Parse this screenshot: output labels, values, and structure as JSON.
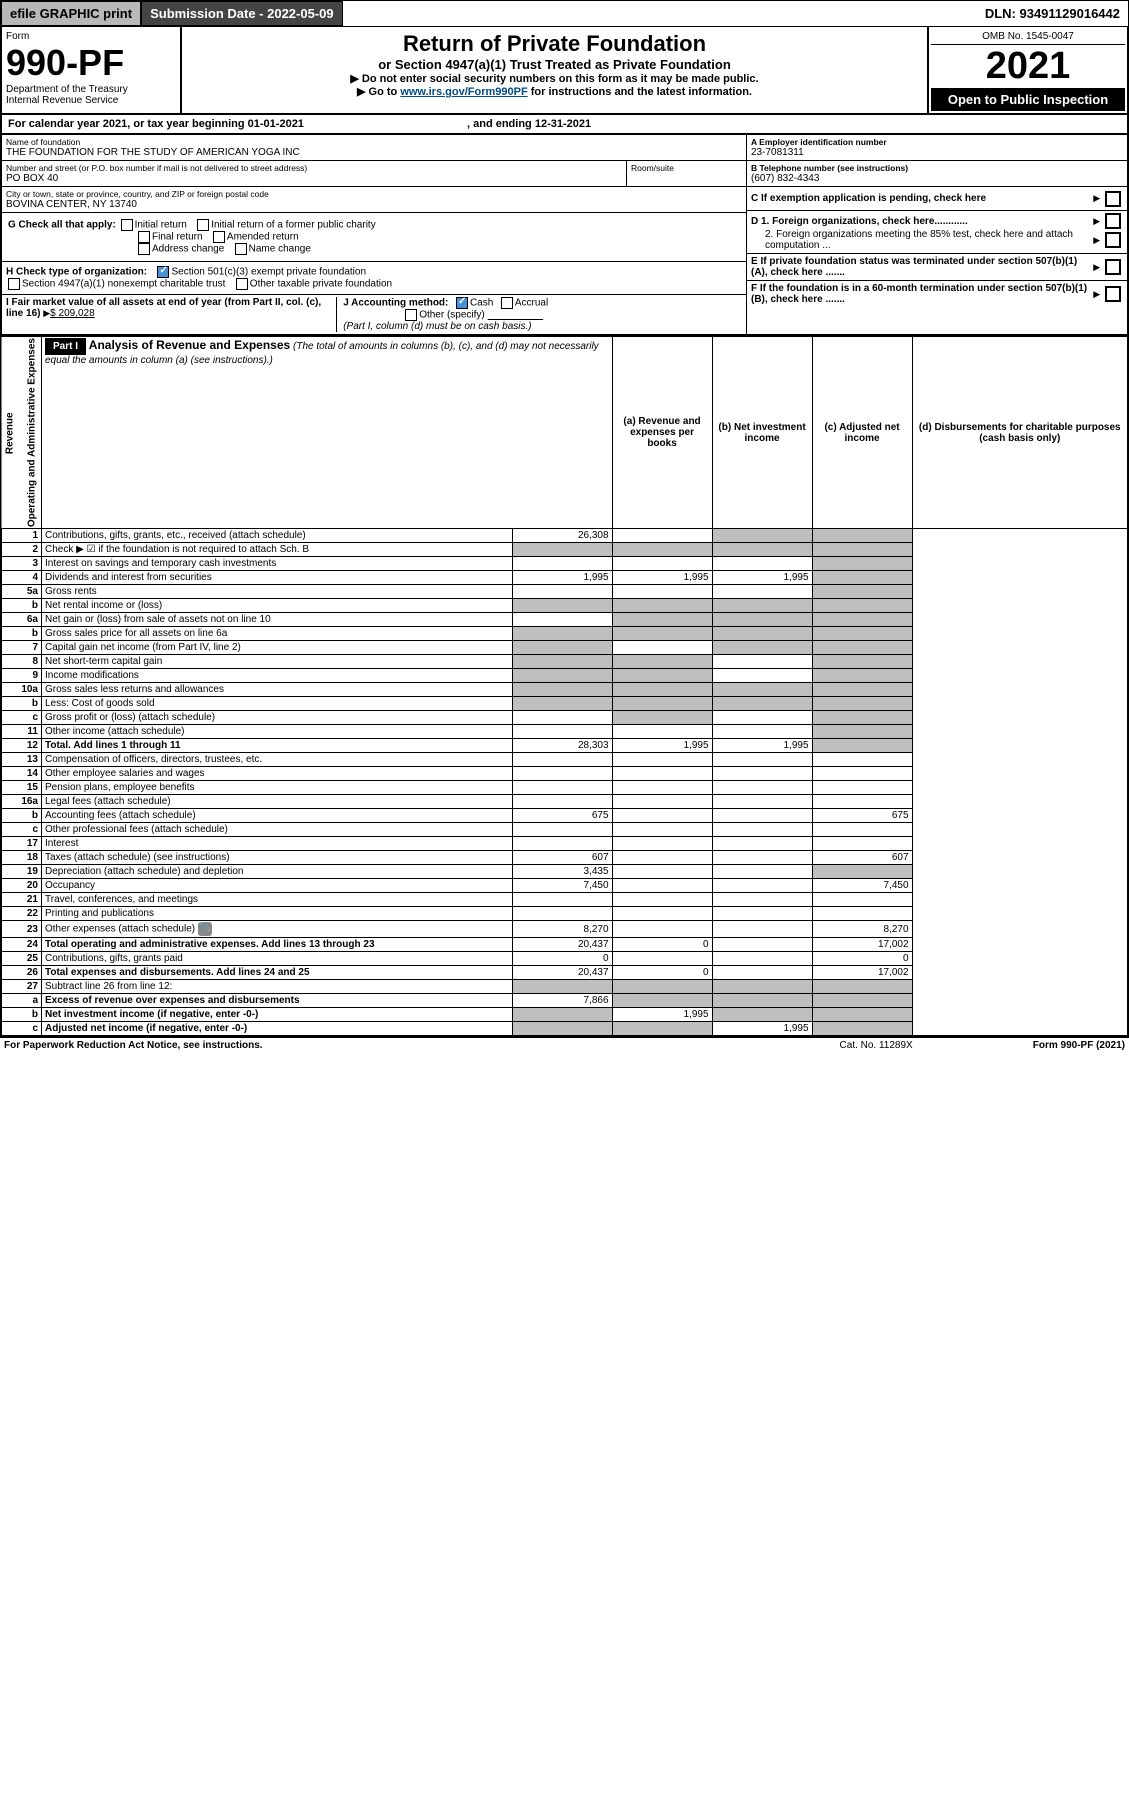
{
  "topbar": {
    "efile": "efile GRAPHIC print",
    "subdate_lbl": "Submission Date - ",
    "subdate": "2022-05-09",
    "dln_lbl": "DLN: ",
    "dln": "93491129016442"
  },
  "hdr": {
    "form_word": "Form",
    "form_no": "990-PF",
    "dept": "Department of the Treasury",
    "irs": "Internal Revenue Service",
    "title": "Return of Private Foundation",
    "subtitle": "or Section 4947(a)(1) Trust Treated as Private Foundation",
    "inst1": "▶ Do not enter social security numbers on this form as it may be made public.",
    "inst2_pre": "▶ Go to ",
    "inst2_link": "www.irs.gov/Form990PF",
    "inst2_post": " for instructions and the latest information.",
    "omb": "OMB No. 1545-0047",
    "year": "2021",
    "open": "Open to Public Inspection"
  },
  "caly": {
    "text_pre": "For calendar year 2021, or tax year beginning ",
    "begin": "01-01-2021",
    "mid": " , and ending ",
    "end": "12-31-2021"
  },
  "id": {
    "name_lbl": "Name of foundation",
    "name": "THE FOUNDATION FOR THE STUDY OF AMERICAN YOGA INC",
    "addr_lbl": "Number and street (or P.O. box number if mail is not delivered to street address)",
    "addr": "PO BOX 40",
    "room_lbl": "Room/suite",
    "room": "",
    "city_lbl": "City or town, state or province, country, and ZIP or foreign postal code",
    "city": "BOVINA CENTER, NY  13740",
    "A_lbl": "A Employer identification number",
    "A": "23-7081311",
    "B_lbl": "B Telephone number (see instructions)",
    "B": "(607) 832-4343",
    "C": "C If exemption application is pending, check here",
    "D1": "D 1. Foreign organizations, check here............",
    "D2": "2. Foreign organizations meeting the 85% test, check here and attach computation ...",
    "E": "E  If private foundation status was terminated under section 507(b)(1)(A), check here .......",
    "F": "F  If the foundation is in a 60-month termination under section 507(b)(1)(B), check here .......",
    "G_lbl": "G Check all that apply:",
    "G_opts": [
      "Initial return",
      "Initial return of a former public charity",
      "Final return",
      "Amended return",
      "Address change",
      "Name change"
    ],
    "H_lbl": "H Check type of organization:",
    "H1": "Section 501(c)(3) exempt private foundation",
    "H2": "Section 4947(a)(1) nonexempt charitable trust",
    "H3": "Other taxable private foundation",
    "I_lbl": "I Fair market value of all assets at end of year (from Part II, col. (c), line 16)",
    "I_val": "$  209,028",
    "J_lbl": "J Accounting method:",
    "J_cash": "Cash",
    "J_acc": "Accrual",
    "J_other": "Other (specify)",
    "J_note": "(Part I, column (d) must be on cash basis.)"
  },
  "part1": {
    "label": "Part I",
    "title": "Analysis of Revenue and Expenses",
    "note": " (The total of amounts in columns (b), (c), and (d) may not necessarily equal the amounts in column (a) (see instructions).)",
    "col_a": "(a)   Revenue and expenses per books",
    "col_b": "(b)   Net investment income",
    "col_c": "(c)   Adjusted net income",
    "col_d": "(d)  Disbursements for charitable purposes (cash basis only)",
    "vlabels": [
      "Revenue",
      "Operating and Administrative Expenses"
    ],
    "rows": [
      {
        "n": "1",
        "d": "Contributions, gifts, grants, etc., received (attach schedule)",
        "a": "26,308",
        "b": "",
        "c": "",
        "ds": "s",
        "cs": "s",
        "dd": "s"
      },
      {
        "n": "2",
        "d": "Check ▶ ☑ if the foundation is not required to attach Sch. B",
        "dots": true,
        "as": "s",
        "bs": "s",
        "cs": "s",
        "dd": "s"
      },
      {
        "n": "3",
        "d": "Interest on savings and temporary cash investments",
        "a": "",
        "b": "",
        "c": "",
        "dd": "s"
      },
      {
        "n": "4",
        "d": "Dividends and interest from securities",
        "dots": true,
        "a": "1,995",
        "b": "1,995",
        "c": "1,995",
        "dd": "s"
      },
      {
        "n": "5a",
        "d": "Gross rents",
        "dots": true,
        "a": "",
        "b": "",
        "c": "",
        "dd": "s"
      },
      {
        "n": "b",
        "d": "Net rental income or (loss)",
        "uline": true,
        "as": "s",
        "bs": "s",
        "cs": "s",
        "dd": "s"
      },
      {
        "n": "6a",
        "d": "Net gain or (loss) from sale of assets not on line 10",
        "a": "",
        "bs": "s",
        "cs": "s",
        "dd": "s"
      },
      {
        "n": "b",
        "d": "Gross sales price for all assets on line 6a",
        "uline": true,
        "as": "s",
        "bs": "s",
        "cs": "s",
        "dd": "s"
      },
      {
        "n": "7",
        "d": "Capital gain net income (from Part IV, line 2)",
        "dots": true,
        "as": "s",
        "b": "",
        "cs": "s",
        "dd": "s"
      },
      {
        "n": "8",
        "d": "Net short-term capital gain",
        "dots": true,
        "as": "s",
        "bs": "s",
        "c": "",
        "dd": "s"
      },
      {
        "n": "9",
        "d": "Income modifications",
        "dots": true,
        "as": "s",
        "bs": "s",
        "c": "",
        "dd": "s"
      },
      {
        "n": "10a",
        "d": "Gross sales less returns and allowances",
        "uline": true,
        "as": "s",
        "bs": "s",
        "cs": "s",
        "dd": "s"
      },
      {
        "n": "b",
        "d": "Less: Cost of goods sold",
        "dots": true,
        "uline": true,
        "as": "s",
        "bs": "s",
        "cs": "s",
        "dd": "s"
      },
      {
        "n": "c",
        "d": "Gross profit or (loss) (attach schedule)",
        "dots": true,
        "a": "",
        "bs": "s",
        "c": "",
        "dd": "s"
      },
      {
        "n": "11",
        "d": "Other income (attach schedule)",
        "dots": true,
        "a": "",
        "b": "",
        "c": "",
        "dd": "s"
      },
      {
        "n": "12",
        "d": "Total. Add lines 1 through 11",
        "bold": true,
        "dots": true,
        "a": "28,303",
        "b": "1,995",
        "c": "1,995",
        "dd": "s"
      },
      {
        "n": "13",
        "d": "Compensation of officers, directors, trustees, etc.",
        "a": "",
        "b": "",
        "c": "",
        "dd": ""
      },
      {
        "n": "14",
        "d": "Other employee salaries and wages",
        "dots": true,
        "a": "",
        "b": "",
        "c": "",
        "dd": ""
      },
      {
        "n": "15",
        "d": "Pension plans, employee benefits",
        "dots": true,
        "a": "",
        "b": "",
        "c": "",
        "dd": ""
      },
      {
        "n": "16a",
        "d": "Legal fees (attach schedule)",
        "dots": true,
        "a": "",
        "b": "",
        "c": "",
        "dd": ""
      },
      {
        "n": "b",
        "d": "Accounting fees (attach schedule)",
        "dots": true,
        "a": "675",
        "b": "",
        "c": "",
        "dd": "675"
      },
      {
        "n": "c",
        "d": "Other professional fees (attach schedule)",
        "dots": true,
        "a": "",
        "b": "",
        "c": "",
        "dd": ""
      },
      {
        "n": "17",
        "d": "Interest",
        "dots": true,
        "a": "",
        "b": "",
        "c": "",
        "dd": ""
      },
      {
        "n": "18",
        "d": "Taxes (attach schedule) (see instructions)",
        "dots": true,
        "a": "607",
        "b": "",
        "c": "",
        "dd": "607"
      },
      {
        "n": "19",
        "d": "Depreciation (attach schedule) and depletion",
        "dots": true,
        "a": "3,435",
        "b": "",
        "c": "",
        "dd": "s"
      },
      {
        "n": "20",
        "d": "Occupancy",
        "dots": true,
        "a": "7,450",
        "b": "",
        "c": "",
        "dd": "7,450"
      },
      {
        "n": "21",
        "d": "Travel, conferences, and meetings",
        "dots": true,
        "a": "",
        "b": "",
        "c": "",
        "dd": ""
      },
      {
        "n": "22",
        "d": "Printing and publications",
        "dots": true,
        "a": "",
        "b": "",
        "c": "",
        "dd": ""
      },
      {
        "n": "23",
        "d": "Other expenses (attach schedule)",
        "dots": true,
        "icon": true,
        "a": "8,270",
        "b": "",
        "c": "",
        "dd": "8,270"
      },
      {
        "n": "24",
        "d": "Total operating and administrative expenses. Add lines 13 through 23",
        "bold": true,
        "dots": true,
        "a": "20,437",
        "b": "0",
        "c": "",
        "dd": "17,002"
      },
      {
        "n": "25",
        "d": "Contributions, gifts, grants paid",
        "dots": true,
        "a": "0",
        "b": "",
        "c": "",
        "dd": "0"
      },
      {
        "n": "26",
        "d": "Total expenses and disbursements. Add lines 24 and 25",
        "bold": true,
        "a": "20,437",
        "b": "0",
        "c": "",
        "dd": "17,002"
      },
      {
        "n": "27",
        "d": "Subtract line 26 from line 12:",
        "as": "s",
        "bs": "s",
        "cs": "s",
        "dd": "s"
      },
      {
        "n": "a",
        "d": "Excess of revenue over expenses and disbursements",
        "bold": true,
        "a": "7,866",
        "bs": "s",
        "cs": "s",
        "dd": "s"
      },
      {
        "n": "b",
        "d": "Net investment income (if negative, enter -0-)",
        "bold": true,
        "as": "s",
        "b": "1,995",
        "cs": "s",
        "dd": "s"
      },
      {
        "n": "c",
        "d": "Adjusted net income (if negative, enter -0-)",
        "bold": true,
        "dots": true,
        "as": "s",
        "bs": "s",
        "c": "1,995",
        "dd": "s"
      }
    ]
  },
  "foot": {
    "l": "For Paperwork Reduction Act Notice, see instructions.",
    "c": "Cat. No. 11289X",
    "r": "Form 990-PF (2021)"
  },
  "colors": {
    "shade": "#bfbfbf",
    "link": "#004b87",
    "chk": "#4a90d9"
  }
}
